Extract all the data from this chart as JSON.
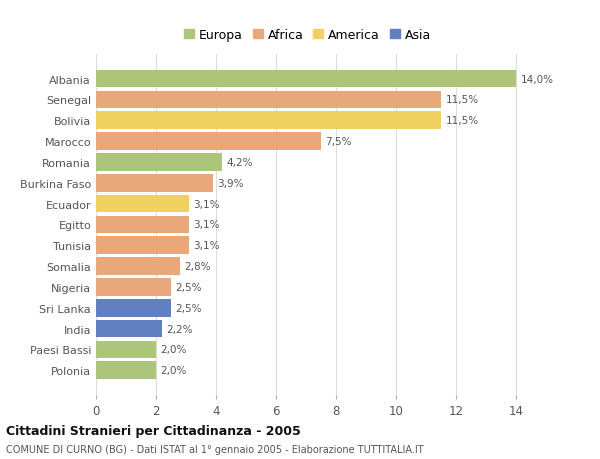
{
  "countries": [
    "Albania",
    "Senegal",
    "Bolivia",
    "Marocco",
    "Romania",
    "Burkina Faso",
    "Ecuador",
    "Egitto",
    "Tunisia",
    "Somalia",
    "Nigeria",
    "Sri Lanka",
    "India",
    "Paesi Bassi",
    "Polonia"
  ],
  "values": [
    14.0,
    11.5,
    11.5,
    7.5,
    4.2,
    3.9,
    3.1,
    3.1,
    3.1,
    2.8,
    2.5,
    2.5,
    2.2,
    2.0,
    2.0
  ],
  "labels": [
    "14,0%",
    "11,5%",
    "11,5%",
    "7,5%",
    "4,2%",
    "3,9%",
    "3,1%",
    "3,1%",
    "3,1%",
    "2,8%",
    "2,5%",
    "2,5%",
    "2,2%",
    "2,0%",
    "2,0%"
  ],
  "continents": [
    "Europa",
    "Africa",
    "America",
    "Africa",
    "Europa",
    "Africa",
    "America",
    "Africa",
    "Africa",
    "Africa",
    "Africa",
    "Asia",
    "Asia",
    "Europa",
    "Europa"
  ],
  "colors": {
    "Europa": "#adc57a",
    "Africa": "#e8a87c",
    "America": "#f0d060",
    "Asia": "#6080c0"
  },
  "legend_order": [
    "Europa",
    "Africa",
    "America",
    "Asia"
  ],
  "title1": "Cittadini Stranieri per Cittadinanza - 2005",
  "title2": "COMUNE DI CURNO (BG) - Dati ISTAT al 1° gennaio 2005 - Elaborazione TUTTITALIA.IT",
  "xlim": [
    0,
    15
  ],
  "xticks": [
    0,
    2,
    4,
    6,
    8,
    10,
    12,
    14
  ],
  "background_color": "#ffffff",
  "grid_color": "#dddddd"
}
